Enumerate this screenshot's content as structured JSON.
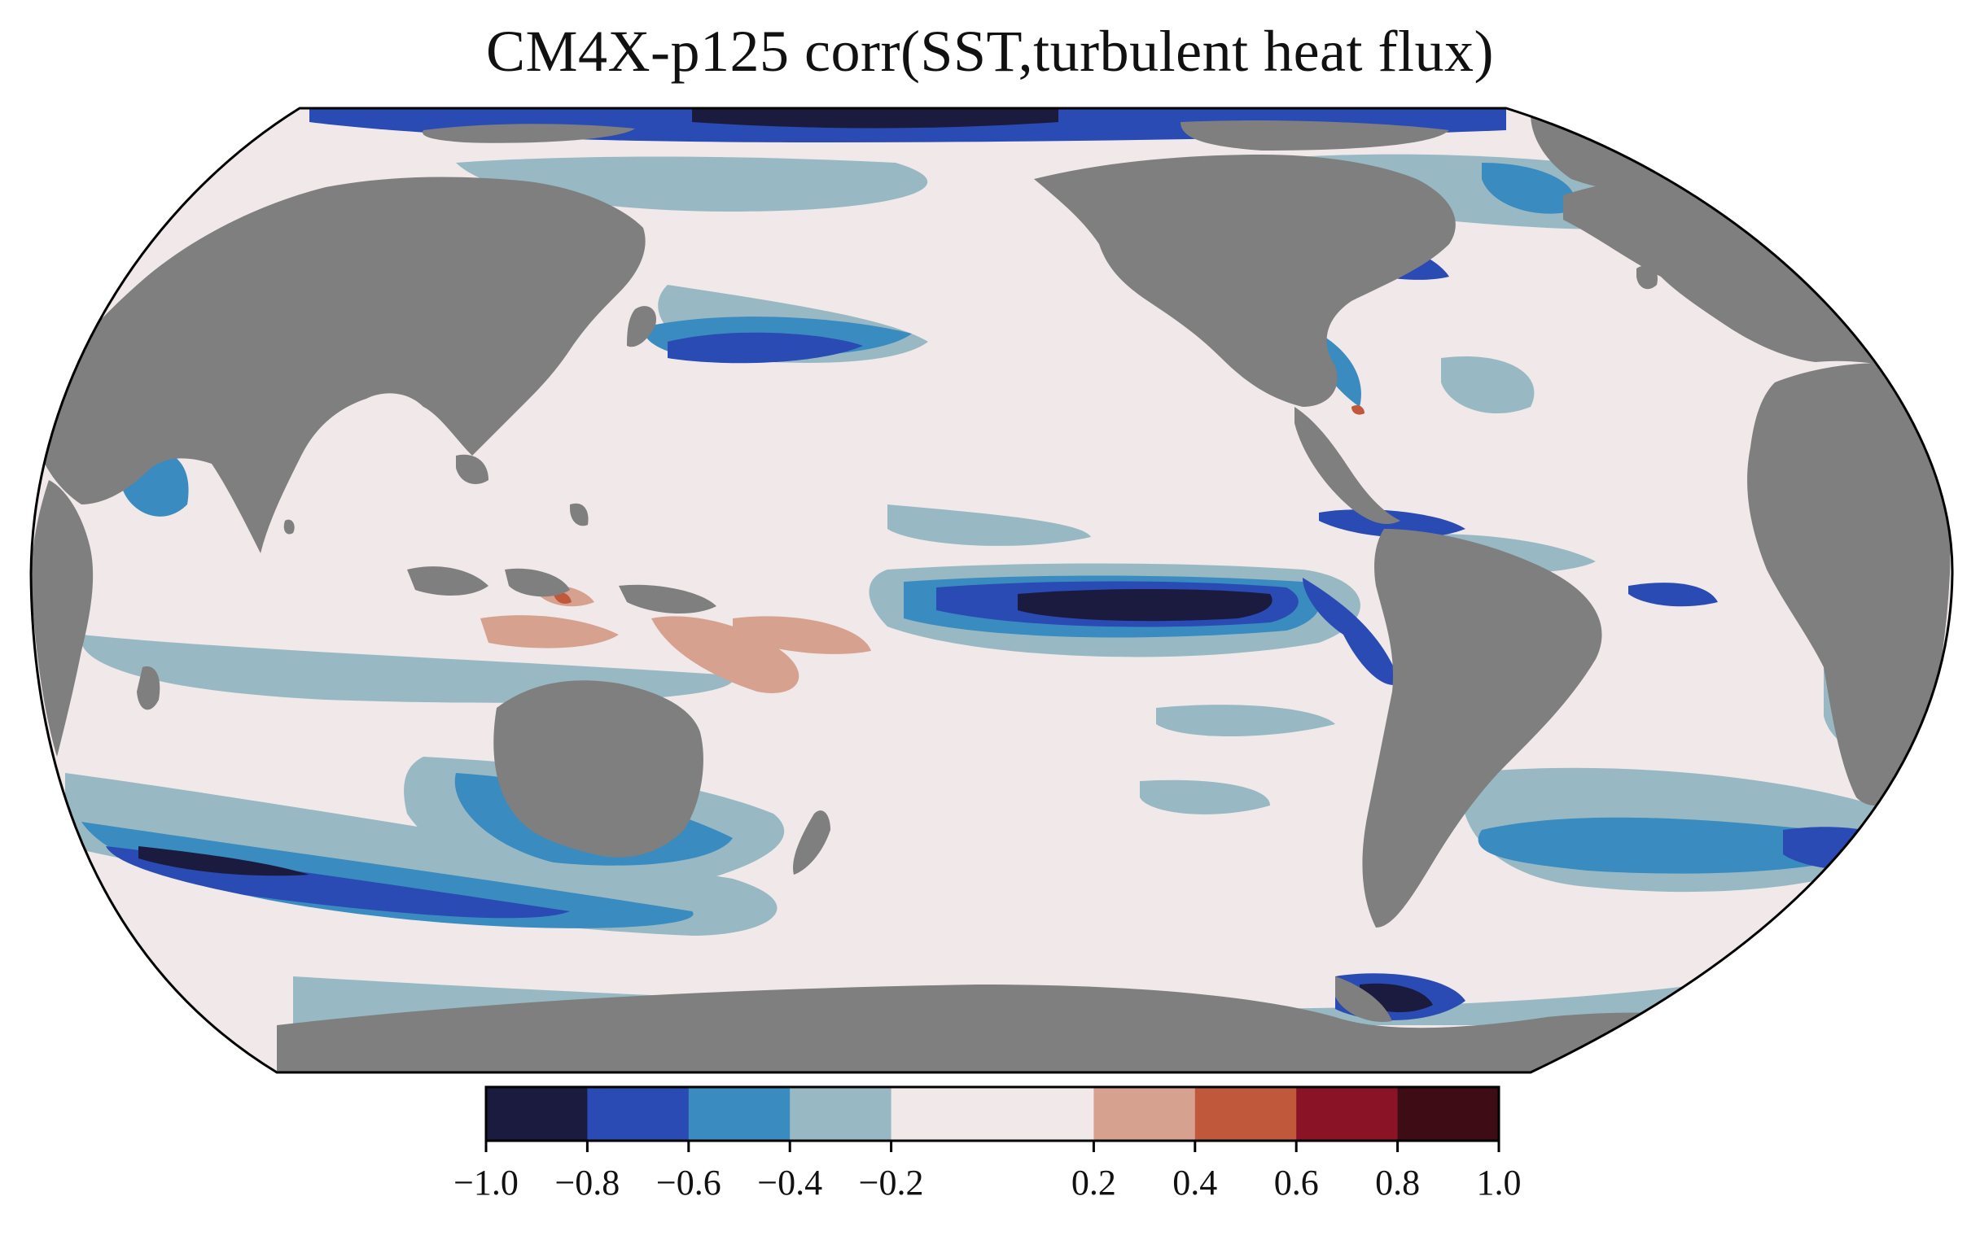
{
  "title": "CM4X-p125 corr(SST,turbulent heat flux)",
  "colors": {
    "land": "#7f7f7f",
    "ocean_neutral": "#f1e9e9",
    "outline": "#000000"
  },
  "colorbar": {
    "bins": [
      {
        "from": -1.0,
        "to": -0.8,
        "color": "#1b1b40"
      },
      {
        "from": -0.8,
        "to": -0.6,
        "color": "#2a4ab4"
      },
      {
        "from": -0.6,
        "to": -0.4,
        "color": "#3a8bbf"
      },
      {
        "from": -0.4,
        "to": -0.2,
        "color": "#98b9c4"
      },
      {
        "from": -0.2,
        "to": 0.2,
        "color": "#f1e9e9"
      },
      {
        "from": 0.2,
        "to": 0.4,
        "color": "#d7a18f"
      },
      {
        "from": 0.4,
        "to": 0.6,
        "color": "#c0583b"
      },
      {
        "from": 0.6,
        "to": 0.8,
        "color": "#8a1426"
      },
      {
        "from": 0.8,
        "to": 1.0,
        "color": "#3e0c14"
      }
    ],
    "tick_labels": [
      "−1.0",
      "−0.8",
      "−0.6",
      "−0.4",
      "−0.2",
      "0.2",
      "0.4",
      "0.6",
      "0.8",
      "1.0"
    ]
  },
  "regions": {
    "land": [
      "north-america",
      "south-america",
      "eurasia",
      "africa",
      "australia",
      "antarctica",
      "greenland",
      "arctic-islands",
      "new-zealand",
      "madagascar",
      "indonesia-islands"
    ],
    "strong_negative": [
      "equatorial-pacific-core",
      "weddell-sea",
      "arctic-ocean"
    ],
    "negative": [
      "kuroshio-extension",
      "gulf-stream",
      "antarctic-circumpolar-current",
      "peru-coast",
      "brazil-malvinas"
    ],
    "positive": [
      "indonesian-seas",
      "western-pacific-warm-pool"
    ]
  }
}
